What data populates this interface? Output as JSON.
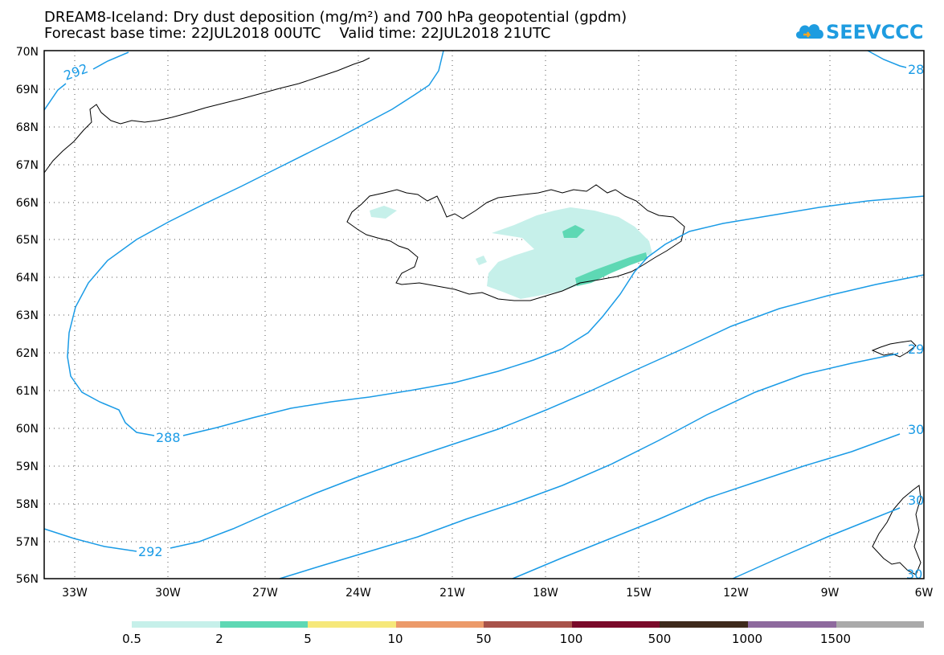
{
  "title": {
    "line1": "DREAM8-Iceland: Dry dust deposition (mg/m²) and 700 hPa geopotential (gpdm)",
    "line2": "Forecast base time: 22JUL2018 00UTC    Valid time: 22JUL2018 21UTC"
  },
  "logo": {
    "text": "SEEVCCC",
    "icon": "cloud-icon",
    "color": "#1e9ce0"
  },
  "map": {
    "lat_labels": [
      "70N",
      "69N",
      "68N",
      "67N",
      "66N",
      "65N",
      "64N",
      "63N",
      "62N",
      "61N",
      "60N",
      "59N",
      "58N",
      "57N",
      "56N"
    ],
    "lon_labels": [
      "33W",
      "30W",
      "27W",
      "24W",
      "21W",
      "18W",
      "15W",
      "12W",
      "9W",
      "6W"
    ],
    "contour_color": "#1a9be6",
    "contour_labels": [
      {
        "id": "c292a",
        "text": "292"
      },
      {
        "id": "c288",
        "text": "288"
      },
      {
        "id": "c292b",
        "text": "292"
      },
      {
        "id": "c28",
        "text": "28"
      },
      {
        "id": "c29",
        "text": "29"
      },
      {
        "id": "c30a",
        "text": "30"
      },
      {
        "id": "c30b",
        "text": "30"
      },
      {
        "id": "c30c",
        "text": "30"
      }
    ]
  },
  "legend": {
    "colors": [
      "#c6f0ea",
      "#5ed8b4",
      "#f6e87a",
      "#ec9a6a",
      "#a8524a",
      "#7a0a2a",
      "#3e2a1c",
      "#8e6a9e",
      "#aaaaaa"
    ],
    "labels": [
      "0.5",
      "2",
      "5",
      "10",
      "50",
      "100",
      "500",
      "1000",
      "1500"
    ]
  }
}
